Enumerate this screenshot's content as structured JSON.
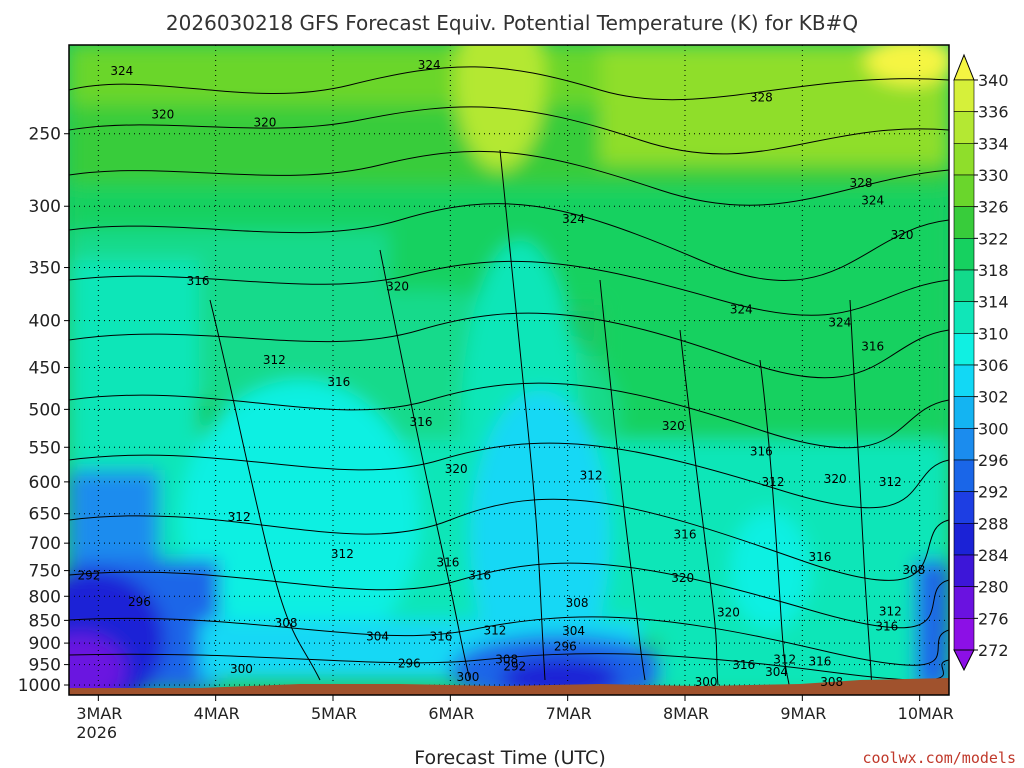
{
  "chart_data": {
    "type": "heatmap",
    "title": "2026030218 GFS Forecast Equiv. Potential Temperature (K) for KB#Q",
    "xlabel": "Forecast Time (UTC)",
    "ylabel": "",
    "y_scale": "log-pressure",
    "y_ticks": [
      250,
      300,
      350,
      400,
      450,
      500,
      550,
      600,
      650,
      700,
      750,
      800,
      850,
      900,
      950,
      1000
    ],
    "ylim": [
      1000,
      200
    ],
    "x_ticks": [
      {
        "label": "3MAR",
        "sub": "2026"
      },
      {
        "label": "4MAR",
        "sub": ""
      },
      {
        "label": "5MAR",
        "sub": ""
      },
      {
        "label": "6MAR",
        "sub": ""
      },
      {
        "label": "7MAR",
        "sub": ""
      },
      {
        "label": "8MAR",
        "sub": ""
      },
      {
        "label": "9MAR",
        "sub": ""
      },
      {
        "label": "10MAR",
        "sub": ""
      }
    ],
    "xlim_days": [
      2.75,
      10.25
    ],
    "colorbar_levels": [
      340,
      336,
      334,
      330,
      326,
      322,
      318,
      314,
      310,
      306,
      302,
      300,
      296,
      292,
      288,
      284,
      280,
      276,
      272
    ],
    "colorbar_colors": [
      "#f5f542",
      "#d6f03a",
      "#b4e833",
      "#8fde2b",
      "#6ad62c",
      "#38cc3b",
      "#16d160",
      "#12da8b",
      "#10e6b8",
      "#10f0e2",
      "#12d8f5",
      "#14b4f2",
      "#1b8cee",
      "#1a66e8",
      "#1d3ee3",
      "#1b22d6",
      "#3d16d8",
      "#6a12e0",
      "#8c10e6"
    ],
    "contour_labels": [
      {
        "text": "324",
        "day": 3.2,
        "p": 215
      },
      {
        "text": "320",
        "day": 3.55,
        "p": 240
      },
      {
        "text": "320",
        "day": 4.42,
        "p": 245
      },
      {
        "text": "324",
        "day": 5.82,
        "p": 212
      },
      {
        "text": "328",
        "day": 8.65,
        "p": 230
      },
      {
        "text": "328",
        "day": 9.5,
        "p": 285
      },
      {
        "text": "324",
        "day": 9.6,
        "p": 298
      },
      {
        "text": "324",
        "day": 7.05,
        "p": 312
      },
      {
        "text": "320",
        "day": 9.85,
        "p": 325
      },
      {
        "text": "316",
        "day": 3.85,
        "p": 365
      },
      {
        "text": "320",
        "day": 5.55,
        "p": 370
      },
      {
        "text": "324",
        "day": 8.48,
        "p": 392
      },
      {
        "text": "324",
        "day": 9.32,
        "p": 405
      },
      {
        "text": "312",
        "day": 4.5,
        "p": 445
      },
      {
        "text": "316",
        "day": 5.05,
        "p": 470
      },
      {
        "text": "316",
        "day": 9.6,
        "p": 430
      },
      {
        "text": "316",
        "day": 5.75,
        "p": 520
      },
      {
        "text": "320",
        "day": 7.9,
        "p": 525
      },
      {
        "text": "316",
        "day": 8.65,
        "p": 560
      },
      {
        "text": "320",
        "day": 6.05,
        "p": 585
      },
      {
        "text": "312",
        "day": 7.2,
        "p": 595
      },
      {
        "text": "312",
        "day": 8.75,
        "p": 605
      },
      {
        "text": "320",
        "day": 9.28,
        "p": 600
      },
      {
        "text": "312",
        "day": 9.75,
        "p": 605
      },
      {
        "text": "312",
        "day": 4.2,
        "p": 660
      },
      {
        "text": "316",
        "day": 8.0,
        "p": 690
      },
      {
        "text": "312",
        "day": 5.08,
        "p": 725
      },
      {
        "text": "316",
        "day": 5.98,
        "p": 740
      },
      {
        "text": "316",
        "day": 6.25,
        "p": 765
      },
      {
        "text": "316",
        "day": 9.15,
        "p": 730
      },
      {
        "text": "320",
        "day": 7.98,
        "p": 770
      },
      {
        "text": "308",
        "day": 9.95,
        "p": 755
      },
      {
        "text": "292",
        "day": 2.92,
        "p": 765
      },
      {
        "text": "296",
        "day": 3.35,
        "p": 818
      },
      {
        "text": "308",
        "day": 7.08,
        "p": 820
      },
      {
        "text": "320",
        "day": 8.37,
        "p": 840
      },
      {
        "text": "312",
        "day": 9.75,
        "p": 838
      },
      {
        "text": "308",
        "day": 4.6,
        "p": 862
      },
      {
        "text": "316",
        "day": 9.72,
        "p": 870
      },
      {
        "text": "304",
        "day": 5.38,
        "p": 892
      },
      {
        "text": "316",
        "day": 5.92,
        "p": 892
      },
      {
        "text": "312",
        "day": 6.38,
        "p": 878
      },
      {
        "text": "304",
        "day": 7.05,
        "p": 880
      },
      {
        "text": "296",
        "day": 6.98,
        "p": 915
      },
      {
        "text": "308",
        "day": 6.48,
        "p": 945
      },
      {
        "text": "296",
        "day": 5.65,
        "p": 955
      },
      {
        "text": "292",
        "day": 6.55,
        "p": 962
      },
      {
        "text": "300",
        "day": 4.22,
        "p": 968
      },
      {
        "text": "300",
        "day": 6.15,
        "p": 988
      },
      {
        "text": "312",
        "day": 8.85,
        "p": 945
      },
      {
        "text": "316",
        "day": 8.5,
        "p": 958
      },
      {
        "text": "316",
        "day": 9.15,
        "p": 950
      },
      {
        "text": "304",
        "day": 8.78,
        "p": 975
      },
      {
        "text": "300",
        "day": 8.18,
        "p": 1000
      },
      {
        "text": "308",
        "day": 9.25,
        "p": 1000
      }
    ],
    "credit": "coolwx.com/models"
  }
}
